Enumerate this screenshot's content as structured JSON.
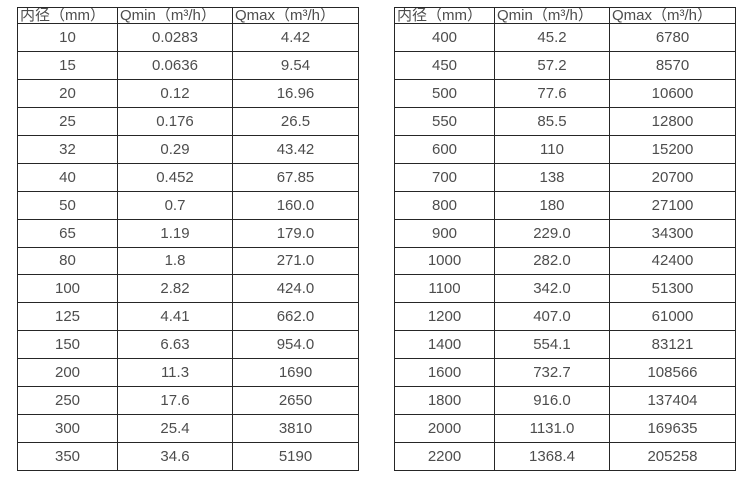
{
  "page": {
    "background_color": "#ffffff",
    "text_color": "#4d4d4d",
    "border_color": "#262626"
  },
  "tables": [
    {
      "headers": [
        "内径（mm）",
        "Qmin（m³/h）",
        "Qmax（m³/h）"
      ],
      "rows": [
        [
          "10",
          "0.0283",
          "4.42"
        ],
        [
          "15",
          "0.0636",
          "9.54"
        ],
        [
          "20",
          "0.12",
          "16.96"
        ],
        [
          "25",
          "0.176",
          "26.5"
        ],
        [
          "32",
          "0.29",
          "43.42"
        ],
        [
          "40",
          "0.452",
          "67.85"
        ],
        [
          "50",
          "0.7",
          "160.0"
        ],
        [
          "65",
          "1.19",
          "179.0"
        ],
        [
          "80",
          "1.8",
          "271.0"
        ],
        [
          "100",
          "2.82",
          "424.0"
        ],
        [
          "125",
          "4.41",
          "662.0"
        ],
        [
          "150",
          "6.63",
          "954.0"
        ],
        [
          "200",
          "11.3",
          "1690"
        ],
        [
          "250",
          "17.6",
          "2650"
        ],
        [
          "300",
          "25.4",
          "3810"
        ],
        [
          "350",
          "34.6",
          "5190"
        ]
      ]
    },
    {
      "headers": [
        "内径（mm）",
        "Qmin（m³/h）",
        "Qmax（m³/h）"
      ],
      "rows": [
        [
          "400",
          "45.2",
          "6780"
        ],
        [
          "450",
          "57.2",
          "8570"
        ],
        [
          "500",
          "77.6",
          "10600"
        ],
        [
          "550",
          "85.5",
          "12800"
        ],
        [
          "600",
          "110",
          "15200"
        ],
        [
          "700",
          "138",
          "20700"
        ],
        [
          "800",
          "180",
          "27100"
        ],
        [
          "900",
          "229.0",
          "34300"
        ],
        [
          "1000",
          "282.0",
          "42400"
        ],
        [
          "1100",
          "342.0",
          "51300"
        ],
        [
          "1200",
          "407.0",
          "61000"
        ],
        [
          "1400",
          "554.1",
          "83121"
        ],
        [
          "1600",
          "732.7",
          "108566"
        ],
        [
          "1800",
          "916.0",
          "137404"
        ],
        [
          "2000",
          "1131.0",
          "169635"
        ],
        [
          "2200",
          "1368.4",
          "205258"
        ]
      ]
    }
  ]
}
